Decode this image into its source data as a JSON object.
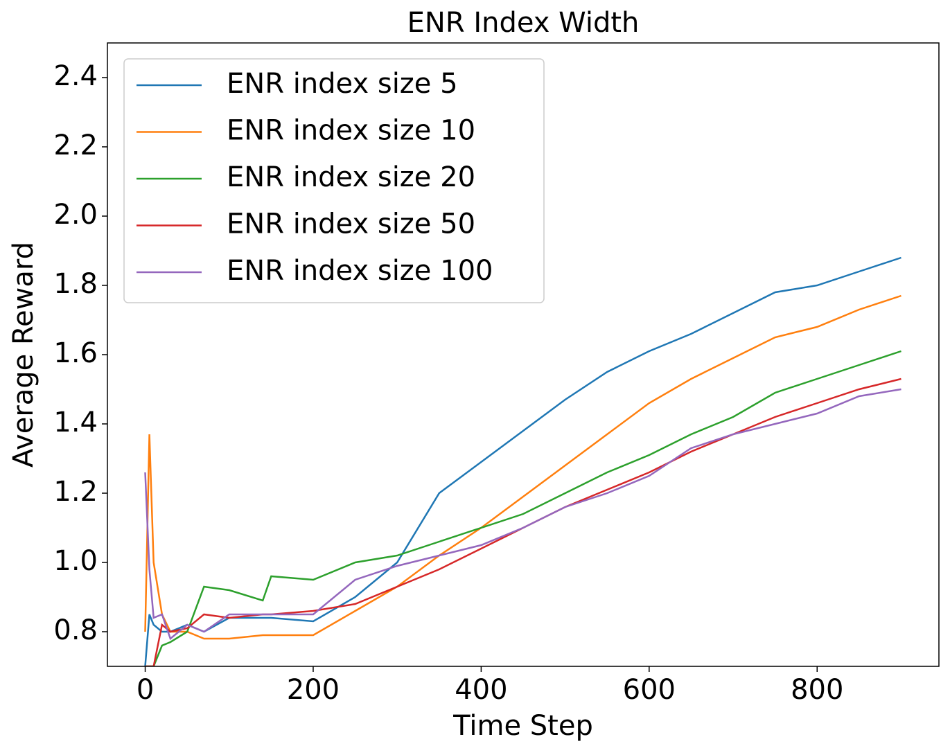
{
  "chart_data": {
    "type": "line",
    "title": "ENR Index Width",
    "x_label": "Time Step",
    "y_label": "Average Reward",
    "x": [
      0,
      5,
      10,
      20,
      30,
      50,
      70,
      100,
      140,
      150,
      200,
      250,
      300,
      350,
      400,
      450,
      500,
      550,
      600,
      650,
      700,
      750,
      800,
      850,
      900
    ],
    "series": [
      {
        "name": "ENR index size 5",
        "color": "#1f77b4",
        "values": [
          0.7,
          0.85,
          0.82,
          0.8,
          0.8,
          0.82,
          0.8,
          0.84,
          0.84,
          0.84,
          0.83,
          0.9,
          1.0,
          1.2,
          1.29,
          1.38,
          1.47,
          1.55,
          1.61,
          1.66,
          1.72,
          1.78,
          1.8,
          1.84,
          1.88
        ]
      },
      {
        "name": "ENR index size 10",
        "color": "#ff7f0e",
        "values": [
          0.8,
          1.37,
          1.0,
          0.85,
          0.8,
          0.8,
          0.78,
          0.78,
          0.79,
          0.79,
          0.79,
          0.86,
          0.93,
          1.02,
          1.1,
          1.19,
          1.28,
          1.37,
          1.46,
          1.53,
          1.59,
          1.65,
          1.68,
          1.73,
          1.77
        ]
      },
      {
        "name": "ENR index size 20",
        "color": "#2ca02c",
        "values": [
          0.7,
          0.7,
          0.7,
          0.76,
          0.77,
          0.8,
          0.93,
          0.92,
          0.89,
          0.96,
          0.95,
          1.0,
          1.02,
          1.06,
          1.1,
          1.14,
          1.2,
          1.26,
          1.31,
          1.37,
          1.42,
          1.49,
          1.53,
          1.57,
          1.61
        ]
      },
      {
        "name": "ENR index size 50",
        "color": "#d62728",
        "values": [
          0.7,
          0.7,
          0.7,
          0.82,
          0.8,
          0.81,
          0.85,
          0.84,
          0.85,
          0.85,
          0.86,
          0.88,
          0.93,
          0.98,
          1.04,
          1.1,
          1.16,
          1.21,
          1.26,
          1.32,
          1.37,
          1.42,
          1.46,
          1.5,
          1.53
        ]
      },
      {
        "name": "ENR index size 100",
        "color": "#9467bd",
        "values": [
          1.26,
          0.98,
          0.84,
          0.85,
          0.78,
          0.82,
          0.8,
          0.85,
          0.85,
          0.85,
          0.85,
          0.95,
          0.99,
          1.02,
          1.05,
          1.1,
          1.16,
          1.2,
          1.25,
          1.33,
          1.37,
          1.4,
          1.43,
          1.48,
          1.5
        ]
      }
    ],
    "xlim": [
      -45,
      945
    ],
    "ylim": [
      0.7,
      2.5
    ],
    "xticks": [
      0,
      200,
      400,
      600,
      800
    ],
    "yticks": [
      0.8,
      {
        "value": 1,
        "label": "1.0"
      },
      1.2,
      1.4,
      1.6,
      1.8,
      {
        "value": 2,
        "label": "2.0"
      },
      2.2,
      2.4
    ],
    "legend": "upper left"
  }
}
